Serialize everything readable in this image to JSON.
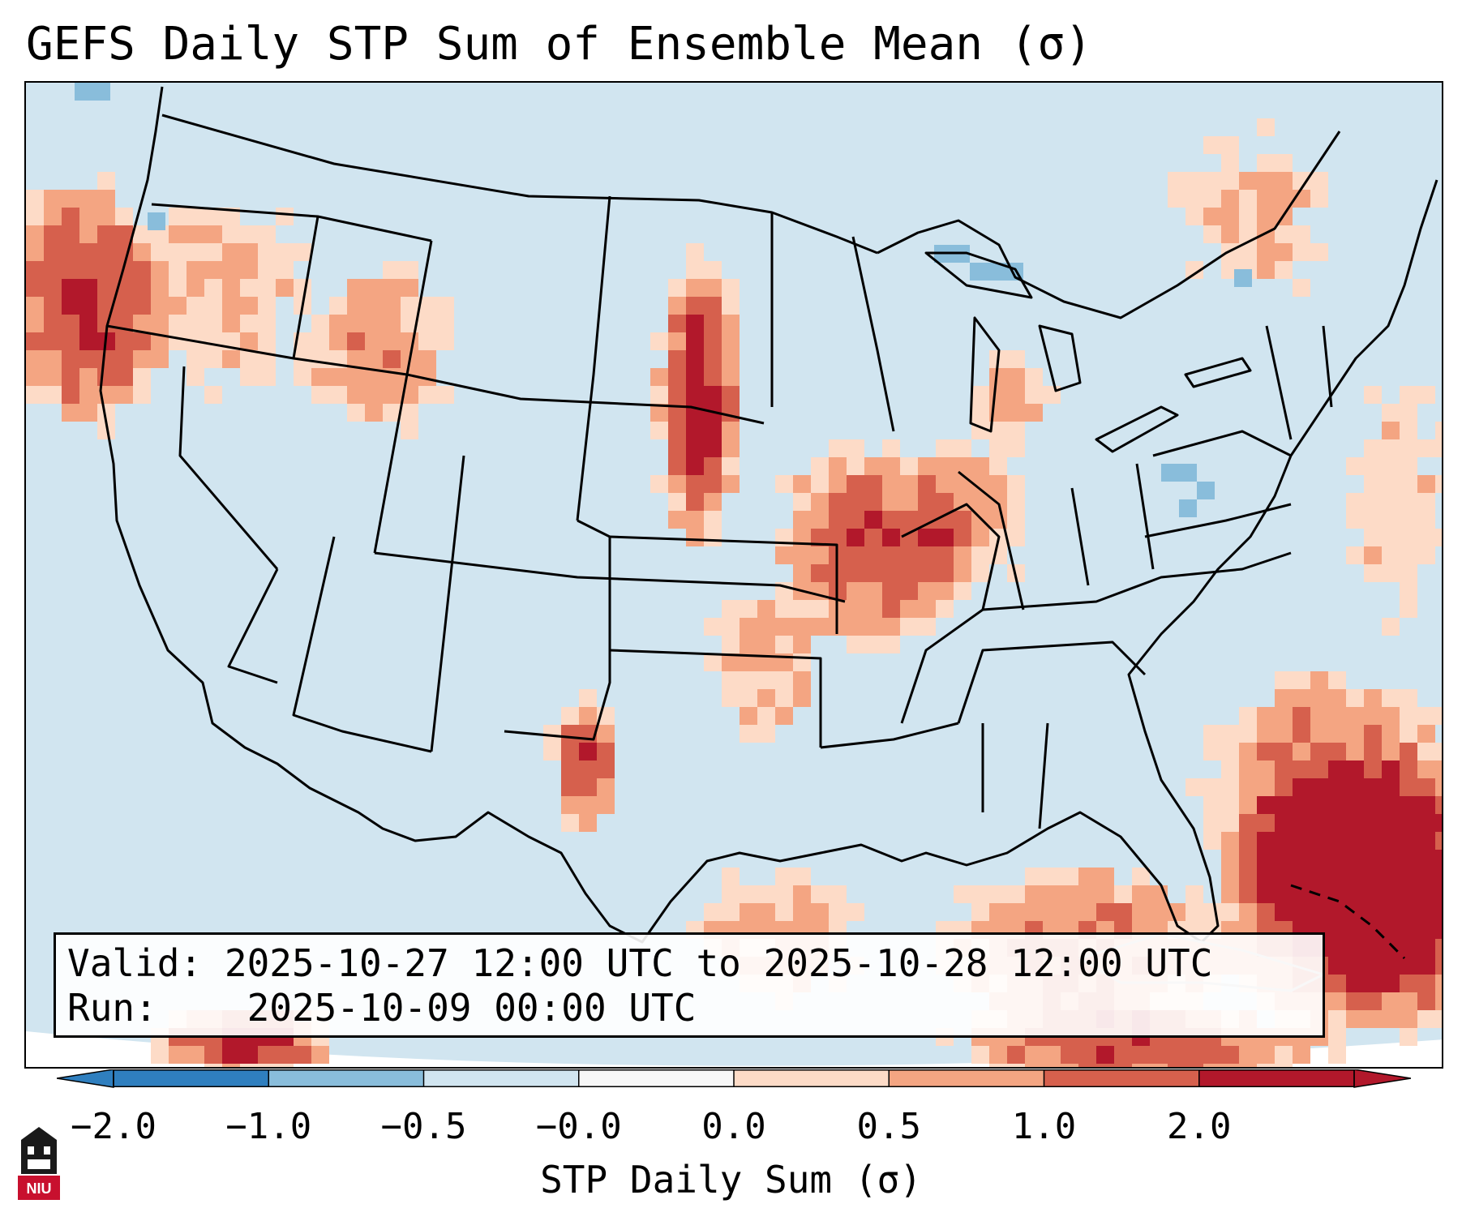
{
  "title": "GEFS Daily STP Sum of Ensemble Mean (σ)",
  "info": {
    "valid_label": "Valid:",
    "valid_text": "2025-10-27 12:00 UTC to 2025-10-28 12:00 UTC",
    "run_label": "Run:",
    "run_text": "2025-10-09 00:00 UTC"
  },
  "colorbar": {
    "label": "STP Daily Sum (σ)",
    "ticks": [
      "−2.0",
      "−1.0",
      "−0.5",
      "−0.0",
      "0.0",
      "0.5",
      "1.0",
      "2.0"
    ],
    "colors": [
      "#2f7fbf",
      "#89bddb",
      "#d1e5f0",
      "#f7f7f7",
      "#fddbc7",
      "#f4a582",
      "#d6604d",
      "#b2182b"
    ],
    "extend": "both"
  },
  "map": {
    "projection": "Lambert conformal, CONUS",
    "background_color": "#d1e5f0",
    "positive_anomaly_regions": [
      "Pacific Northwest coast",
      "Northern Plains (Dakotas)",
      "Mississippi Valley / Missouri / Illinois",
      "New Mexico / West Texas",
      "Gulf of Mexico and Florida Straits",
      "Western Atlantic east of Florida",
      "Bahamas / Cuba"
    ],
    "negative_anomaly_regions": [
      "Lake Superior",
      "Northern Michigan",
      "Pennsylvania / New York"
    ]
  },
  "logo": {
    "text": "NIU"
  }
}
